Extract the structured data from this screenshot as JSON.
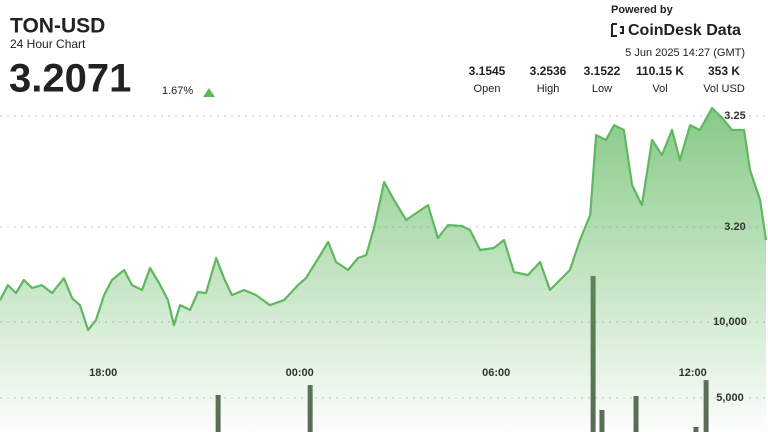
{
  "header": {
    "symbol": "TON-USD",
    "subtitle": "24 Hour Chart",
    "price": "3.2071",
    "change": "1.67%",
    "powered_by": "Powered by",
    "brand": "CoinDesk Data",
    "timestamp": "5 Jun 2025 14:27 (GMT)",
    "stats": [
      {
        "value": "3.1545",
        "label": "Open"
      },
      {
        "value": "3.2536",
        "label": "High"
      },
      {
        "value": "3.1522",
        "label": "Low"
      },
      {
        "value": "110.15 K",
        "label": "Vol"
      },
      {
        "value": "353 K",
        "label": "Vol USD"
      }
    ]
  },
  "chart_data": [
    {
      "type": "line",
      "color": "#5fb85f",
      "x": [
        14.85,
        15.09,
        15.34,
        15.58,
        15.83,
        16.13,
        16.44,
        16.8,
        17.05,
        17.29,
        17.54,
        17.78,
        18.03,
        18.27,
        18.64,
        18.88,
        19.19,
        19.43,
        19.74,
        19.98,
        20.16,
        20.35,
        20.65,
        20.9,
        21.14,
        21.45,
        21.69,
        21.93,
        22.3,
        22.67,
        23.09,
        23.52,
        23.95,
        24.19,
        24.5,
        24.87,
        25.11,
        25.48,
        25.78,
        26.03,
        26.27,
        26.58,
        26.88,
        27.25,
        27.61,
        27.92,
        28.22,
        28.53,
        28.96,
        29.2,
        29.51,
        29.93,
        30.24,
        30.54,
        30.97,
        31.34,
        31.64,
        31.95,
        32.25,
        32.56,
        32.87,
        33.05,
        33.35,
        33.6,
        33.9,
        34.15,
        34.45,
        34.76,
        35.06,
        35.37,
        35.61,
        35.92,
        36.22,
        36.59,
        36.9,
        37.2,
        37.57,
        37.75,
        38.06,
        38.24
      ],
      "values": [
        3.1671,
        3.1739,
        3.1703,
        3.1762,
        3.1726,
        3.1739,
        3.1703,
        3.177,
        3.168,
        3.1649,
        3.1537,
        3.1582,
        3.1694,
        3.1762,
        3.1807,
        3.1739,
        3.1717,
        3.1816,
        3.1739,
        3.1671,
        3.1559,
        3.1649,
        3.1627,
        3.1708,
        3.1703,
        3.1861,
        3.177,
        3.1694,
        3.1717,
        3.1694,
        3.1649,
        3.1671,
        3.1739,
        3.177,
        3.1843,
        3.1933,
        3.1843,
        3.1807,
        3.1861,
        3.1874,
        3.1996,
        3.2203,
        3.2122,
        3.2032,
        3.2068,
        3.2099,
        3.1951,
        3.2009,
        3.2005,
        3.1987,
        3.1897,
        3.1906,
        3.1942,
        3.1798,
        3.1784,
        3.1843,
        3.1717,
        3.1762,
        3.1807,
        3.1942,
        3.2054,
        3.2414,
        3.2392,
        3.2459,
        3.2437,
        3.2189,
        3.2099,
        3.2392,
        3.2324,
        3.2437,
        3.2302,
        3.2459,
        3.2437,
        3.2536,
        3.2491,
        3.2437,
        3.2437,
        3.2257,
        3.2122,
        3.1942
      ],
      "xlim": [
        14.85,
        38.3
      ],
      "ylim": [
        3.1078,
        3.2572
      ],
      "xticks": [
        {
          "value": 18,
          "label": "18:00"
        },
        {
          "value": 24,
          "label": "00:00"
        },
        {
          "value": 30,
          "label": "06:00"
        },
        {
          "value": 36,
          "label": "12:00"
        }
      ],
      "yticks": [
        {
          "value": 3.2,
          "label": "3.20"
        },
        3.25
      ],
      "grid": true
    },
    {
      "type": "bar",
      "color": "#5a6956",
      "x": [
        21.51,
        24.32,
        32.96,
        33.23,
        34.27,
        36.1,
        36.41
      ],
      "values": [
        5200,
        5850,
        13030,
        4210,
        5130,
        3090,
        6180
      ],
      "xlim": [
        14.85,
        38.3
      ],
      "ylim": [
        2763,
        24605
      ],
      "yticks": [
        {
          "value": 5000,
          "label": "5,000"
        },
        {
          "value": 10000,
          "label": "10,000"
        }
      ],
      "grid": true
    }
  ]
}
